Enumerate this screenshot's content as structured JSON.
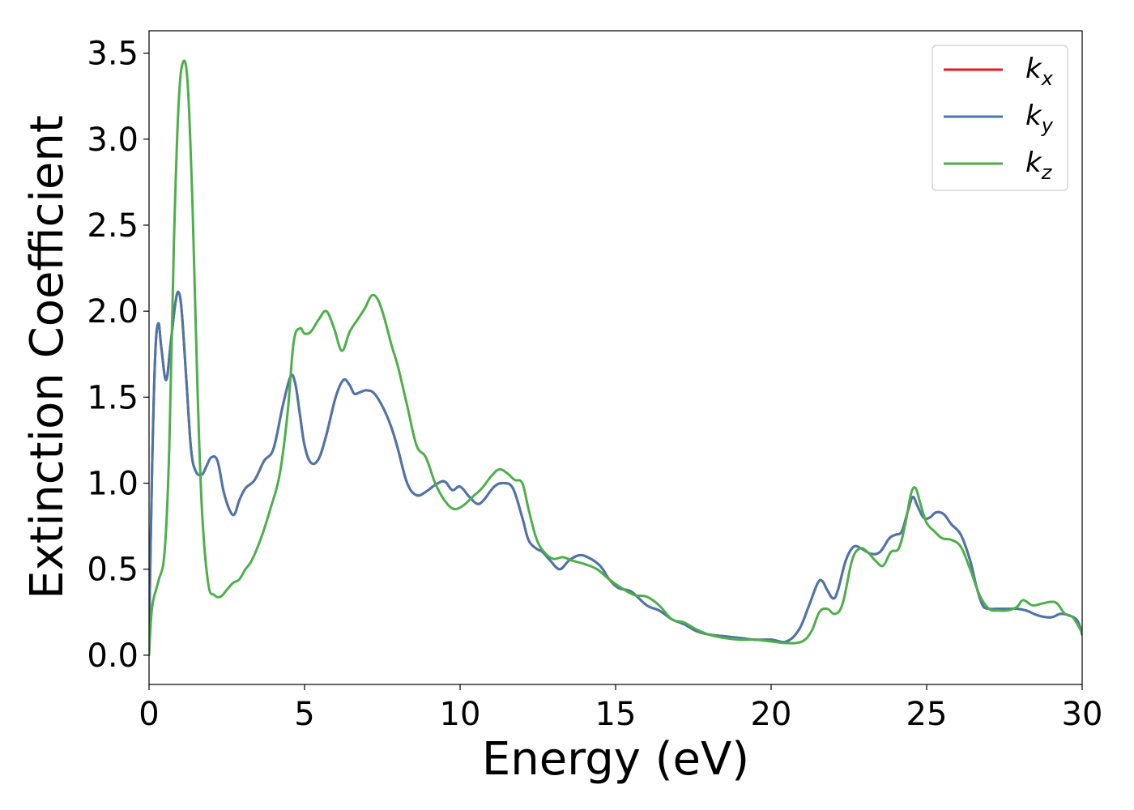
{
  "chart_data": {
    "type": "line",
    "title": "",
    "xlabel": "Energy (eV)",
    "ylabel": "Extinction Coefficient",
    "xlim": [
      0,
      30
    ],
    "ylim": [
      -0.17,
      3.63
    ],
    "xticks": [
      0,
      5,
      10,
      15,
      20,
      25,
      30
    ],
    "xtick_labels": [
      "0",
      "5",
      "10",
      "15",
      "20",
      "25",
      "30"
    ],
    "yticks": [
      0.0,
      0.5,
      1.0,
      1.5,
      2.0,
      2.5,
      3.0,
      3.5
    ],
    "ytick_labels": [
      "0.0",
      "0.5",
      "1.0",
      "1.5",
      "2.0",
      "2.5",
      "3.0",
      "3.5"
    ],
    "grid": false,
    "legend_position": "top-right",
    "series": [
      {
        "name": "k_x",
        "legend_base": "k",
        "legend_sub": "x",
        "color": "#e41a1c",
        "x": [
          0,
          0.1,
          0.2,
          0.3,
          0.4,
          0.55,
          0.7,
          0.85,
          0.95,
          1.05,
          1.2,
          1.35,
          1.5,
          1.7,
          1.85,
          2.0,
          2.2,
          2.4,
          2.6,
          2.75,
          2.9,
          3.1,
          3.4,
          3.7,
          4.0,
          4.3,
          4.55,
          4.7,
          4.85,
          5.0,
          5.2,
          5.45,
          5.7,
          6.0,
          6.25,
          6.45,
          6.6,
          6.8,
          7.0,
          7.25,
          7.55,
          7.8,
          8.0,
          8.3,
          8.6,
          8.9,
          9.2,
          9.5,
          9.75,
          10.0,
          10.3,
          10.55,
          10.75,
          11.1,
          11.4,
          11.7,
          12.0,
          12.2,
          12.45,
          12.65,
          12.9,
          13.2,
          13.5,
          13.8,
          14.1,
          14.5,
          14.8,
          15.1,
          15.5,
          16.0,
          16.4,
          16.8,
          17.2,
          17.6,
          18.0,
          18.5,
          19.0,
          19.5,
          20.0,
          20.5,
          20.9,
          21.2,
          21.5,
          21.65,
          21.8,
          22.0,
          22.15,
          22.4,
          22.65,
          22.9,
          23.2,
          23.5,
          23.8,
          24.0,
          24.2,
          24.4,
          24.55,
          24.7,
          24.9,
          25.1,
          25.3,
          25.55,
          25.8,
          26.1,
          26.4,
          26.6,
          26.8,
          27.0,
          27.3,
          27.6,
          27.9,
          28.2,
          28.6,
          29.0,
          29.3,
          29.6,
          29.85,
          30.0
        ],
        "y": [
          0.1,
          1.1,
          1.75,
          1.93,
          1.78,
          1.6,
          1.82,
          2.05,
          2.11,
          2.0,
          1.6,
          1.2,
          1.07,
          1.05,
          1.1,
          1.15,
          1.13,
          0.95,
          0.84,
          0.82,
          0.9,
          0.97,
          1.02,
          1.13,
          1.2,
          1.45,
          1.62,
          1.58,
          1.4,
          1.22,
          1.12,
          1.14,
          1.28,
          1.5,
          1.6,
          1.57,
          1.52,
          1.53,
          1.54,
          1.52,
          1.43,
          1.32,
          1.2,
          1.0,
          0.93,
          0.95,
          0.99,
          1.01,
          0.96,
          0.98,
          0.92,
          0.88,
          0.9,
          0.98,
          1.0,
          0.97,
          0.8,
          0.67,
          0.62,
          0.6,
          0.55,
          0.5,
          0.55,
          0.58,
          0.57,
          0.52,
          0.44,
          0.39,
          0.37,
          0.29,
          0.26,
          0.21,
          0.18,
          0.14,
          0.12,
          0.11,
          0.1,
          0.09,
          0.09,
          0.08,
          0.15,
          0.28,
          0.42,
          0.43,
          0.38,
          0.33,
          0.38,
          0.55,
          0.63,
          0.62,
          0.59,
          0.6,
          0.68,
          0.7,
          0.72,
          0.84,
          0.92,
          0.87,
          0.8,
          0.8,
          0.83,
          0.82,
          0.76,
          0.7,
          0.55,
          0.4,
          0.29,
          0.27,
          0.27,
          0.27,
          0.27,
          0.26,
          0.23,
          0.22,
          0.24,
          0.23,
          0.2,
          0.12
        ]
      },
      {
        "name": "k_y",
        "legend_base": "k",
        "legend_sub": "y",
        "color": "#4a77aa",
        "x": [
          0,
          0.1,
          0.2,
          0.3,
          0.4,
          0.55,
          0.7,
          0.85,
          0.95,
          1.05,
          1.2,
          1.35,
          1.5,
          1.7,
          1.85,
          2.0,
          2.2,
          2.4,
          2.6,
          2.75,
          2.9,
          3.1,
          3.4,
          3.7,
          4.0,
          4.3,
          4.55,
          4.7,
          4.85,
          5.0,
          5.2,
          5.45,
          5.7,
          6.0,
          6.25,
          6.45,
          6.6,
          6.8,
          7.0,
          7.25,
          7.55,
          7.8,
          8.0,
          8.3,
          8.6,
          8.9,
          9.2,
          9.5,
          9.75,
          10.0,
          10.3,
          10.55,
          10.75,
          11.1,
          11.4,
          11.7,
          12.0,
          12.2,
          12.45,
          12.65,
          12.9,
          13.2,
          13.5,
          13.8,
          14.1,
          14.5,
          14.8,
          15.1,
          15.5,
          16.0,
          16.4,
          16.8,
          17.2,
          17.6,
          18.0,
          18.5,
          19.0,
          19.5,
          20.0,
          20.5,
          20.9,
          21.2,
          21.5,
          21.65,
          21.8,
          22.0,
          22.15,
          22.4,
          22.65,
          22.9,
          23.2,
          23.5,
          23.8,
          24.0,
          24.2,
          24.4,
          24.55,
          24.7,
          24.9,
          25.1,
          25.3,
          25.55,
          25.8,
          26.1,
          26.4,
          26.6,
          26.8,
          27.0,
          27.3,
          27.6,
          27.9,
          28.2,
          28.6,
          29.0,
          29.3,
          29.6,
          29.85,
          30.0
        ],
        "y": [
          0.1,
          1.1,
          1.75,
          1.93,
          1.78,
          1.6,
          1.82,
          2.05,
          2.11,
          2.0,
          1.6,
          1.2,
          1.07,
          1.05,
          1.1,
          1.15,
          1.13,
          0.95,
          0.84,
          0.82,
          0.9,
          0.97,
          1.02,
          1.13,
          1.2,
          1.45,
          1.62,
          1.58,
          1.4,
          1.22,
          1.12,
          1.14,
          1.28,
          1.5,
          1.6,
          1.57,
          1.52,
          1.53,
          1.54,
          1.52,
          1.43,
          1.32,
          1.2,
          1.0,
          0.93,
          0.95,
          0.99,
          1.01,
          0.96,
          0.98,
          0.92,
          0.88,
          0.9,
          0.98,
          1.0,
          0.97,
          0.8,
          0.67,
          0.62,
          0.6,
          0.55,
          0.5,
          0.55,
          0.58,
          0.57,
          0.52,
          0.44,
          0.39,
          0.37,
          0.29,
          0.26,
          0.21,
          0.18,
          0.14,
          0.12,
          0.11,
          0.1,
          0.09,
          0.09,
          0.08,
          0.15,
          0.28,
          0.42,
          0.43,
          0.38,
          0.33,
          0.38,
          0.55,
          0.63,
          0.62,
          0.59,
          0.6,
          0.68,
          0.7,
          0.72,
          0.84,
          0.92,
          0.87,
          0.8,
          0.8,
          0.83,
          0.82,
          0.76,
          0.7,
          0.55,
          0.4,
          0.29,
          0.27,
          0.27,
          0.27,
          0.27,
          0.26,
          0.23,
          0.22,
          0.24,
          0.23,
          0.2,
          0.12
        ]
      },
      {
        "name": "k_z",
        "legend_base": "k",
        "legend_sub": "z",
        "color": "#4daf4a",
        "x": [
          0,
          0.1,
          0.3,
          0.5,
          0.65,
          0.8,
          0.95,
          1.1,
          1.25,
          1.4,
          1.55,
          1.7,
          1.9,
          2.1,
          2.3,
          2.5,
          2.7,
          2.9,
          3.1,
          3.3,
          3.6,
          3.9,
          4.2,
          4.45,
          4.65,
          4.85,
          5.0,
          5.2,
          5.45,
          5.7,
          5.95,
          6.2,
          6.45,
          6.7,
          6.95,
          7.15,
          7.35,
          7.55,
          7.8,
          8.0,
          8.3,
          8.6,
          8.9,
          9.2,
          9.5,
          9.8,
          10.1,
          10.4,
          10.7,
          11.0,
          11.25,
          11.5,
          11.75,
          12.0,
          12.2,
          12.45,
          12.7,
          13.0,
          13.3,
          13.6,
          14.0,
          14.4,
          14.8,
          15.2,
          15.6,
          16.0,
          16.4,
          16.8,
          17.2,
          17.6,
          18.0,
          18.5,
          19.0,
          19.5,
          20.0,
          20.5,
          21.0,
          21.3,
          21.55,
          21.8,
          22.05,
          22.3,
          22.6,
          22.85,
          23.1,
          23.35,
          23.6,
          23.85,
          24.1,
          24.3,
          24.5,
          24.65,
          24.8,
          25.0,
          25.25,
          25.5,
          25.8,
          26.1,
          26.4,
          26.7,
          27.0,
          27.3,
          27.6,
          27.9,
          28.1,
          28.4,
          28.7,
          29.0,
          29.2,
          29.45,
          29.7,
          30.0
        ],
        "y": [
          0.0,
          0.28,
          0.43,
          0.6,
          1.2,
          2.4,
          3.2,
          3.45,
          3.3,
          2.6,
          1.6,
          0.85,
          0.42,
          0.35,
          0.34,
          0.38,
          0.42,
          0.44,
          0.5,
          0.55,
          0.68,
          0.85,
          1.05,
          1.4,
          1.82,
          1.9,
          1.87,
          1.88,
          1.95,
          2.0,
          1.9,
          1.77,
          1.88,
          1.95,
          2.02,
          2.09,
          2.07,
          1.97,
          1.8,
          1.68,
          1.45,
          1.22,
          1.15,
          1.0,
          0.9,
          0.85,
          0.87,
          0.92,
          0.97,
          1.04,
          1.08,
          1.06,
          1.02,
          1.0,
          0.85,
          0.68,
          0.6,
          0.56,
          0.57,
          0.55,
          0.53,
          0.5,
          0.44,
          0.39,
          0.35,
          0.34,
          0.29,
          0.21,
          0.19,
          0.15,
          0.12,
          0.1,
          0.09,
          0.09,
          0.08,
          0.07,
          0.08,
          0.14,
          0.25,
          0.27,
          0.24,
          0.3,
          0.55,
          0.62,
          0.6,
          0.55,
          0.52,
          0.6,
          0.62,
          0.75,
          0.94,
          0.97,
          0.88,
          0.77,
          0.72,
          0.68,
          0.67,
          0.63,
          0.5,
          0.35,
          0.27,
          0.26,
          0.26,
          0.28,
          0.32,
          0.29,
          0.3,
          0.31,
          0.3,
          0.24,
          0.22,
          0.13
        ]
      }
    ]
  }
}
